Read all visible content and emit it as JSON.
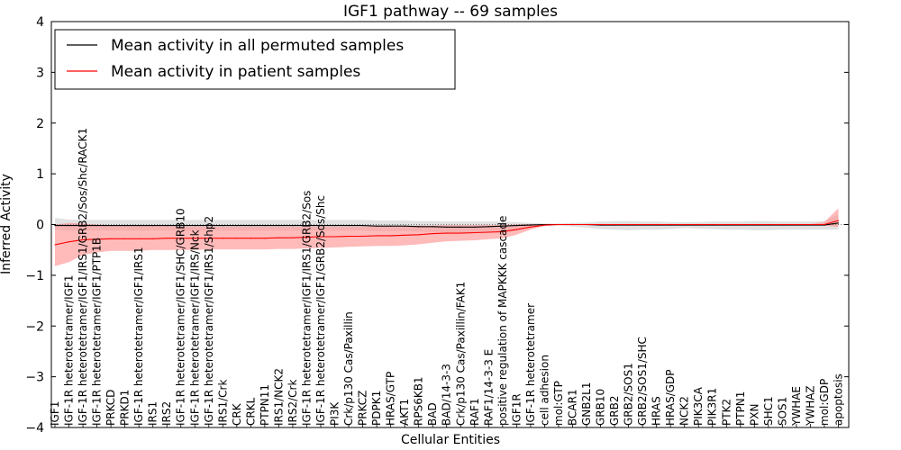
{
  "chart_data": {
    "type": "line",
    "title": "IGF1 pathway -- 69 samples",
    "xlabel": "Cellular Entities",
    "ylabel": "Inferred Activity",
    "ylim": [
      -4,
      4
    ],
    "yticks": [
      4,
      3,
      2,
      1,
      0,
      -1,
      -2,
      -3,
      -4
    ],
    "ytick_labels": [
      "4",
      "3",
      "2",
      "1",
      "0",
      "−1",
      "−2",
      "−3",
      "−4"
    ],
    "legend_position": "top-left",
    "categories": [
      "IGF1",
      "IGF-1R heterotetramer/IGF1",
      "IGF-1R heterotetramer/IGF1/IRS1/GRB2/Sos/Shc/RACK1",
      "IGF-1R heterotetramer/IGF1/PTP1B",
      "PRKCD",
      "PRKD1",
      "IGF-1R heterotetramer/IGF1/IRS1",
      "IRS1",
      "IRS2",
      "IGF-1R heterotetramer/IGF1/SHC/GRB10",
      "IGF-1R heterotetramer/IGF1/IRS/Nck",
      "IGF-1R heterotetramer/IGF1/IRS1/Shp2",
      "IRS1/Crk",
      "CRK",
      "CRKL",
      "PTPN11",
      "IRS1/NCK2",
      "IRS2/Crk",
      "IGF-1R heterotetramer/IGF1/IRS1/GRB2/Sos",
      "IGF-1R heterotetramer/IGF1/GRB2/Sos/Shc",
      "PI3K",
      "Crk/p130 Cas/Paxillin",
      "PRKCZ",
      "PDPK1",
      "HRAS/GTP",
      "AKT1",
      "RPS6KB1",
      "BAD",
      "BAD/14-3-3",
      "Crk/p130 Cas/Paxillin/FAK1",
      "RAF1",
      "RAF1/14-3-3 E",
      "positive regulation of MAPKKK cascade",
      "IGF1R",
      "IGF-1R heterotetramer",
      "cell adhesion",
      "mol:GTP",
      "BCAR1",
      "GNB2L1",
      "GRB10",
      "GRB2",
      "GRB2/SOS1",
      "GRB2/SOS1/SHC",
      "HRAS",
      "HRAS/GDP",
      "NCK2",
      "PIK3CA",
      "PIK3R1",
      "PTK2",
      "PTPN1",
      "PXN",
      "SHC1",
      "SOS1",
      "YWHAE",
      "YWHAZ",
      "mol:GDP",
      "apoptosis"
    ],
    "series": [
      {
        "name": "Mean activity in all permuted samples",
        "color": "#000000",
        "band_color": "#c8c8c8",
        "values": [
          -0.02,
          -0.02,
          -0.02,
          -0.02,
          -0.02,
          -0.02,
          -0.02,
          -0.02,
          -0.02,
          -0.02,
          -0.02,
          -0.02,
          -0.02,
          -0.02,
          -0.02,
          -0.02,
          -0.02,
          -0.02,
          -0.02,
          -0.02,
          -0.02,
          -0.02,
          -0.02,
          -0.03,
          -0.03,
          -0.03,
          -0.04,
          -0.04,
          -0.05,
          -0.05,
          -0.05,
          -0.04,
          -0.03,
          -0.02,
          -0.01,
          0,
          0,
          0,
          0,
          -0.01,
          -0.01,
          -0.01,
          -0.01,
          -0.01,
          -0.01,
          -0.01,
          -0.01,
          -0.01,
          -0.01,
          -0.01,
          -0.01,
          -0.01,
          -0.01,
          -0.01,
          -0.01,
          -0.01,
          0.03
        ],
        "lower": [
          -0.1,
          -0.12,
          -0.12,
          -0.12,
          -0.12,
          -0.12,
          -0.12,
          -0.12,
          -0.12,
          -0.12,
          -0.12,
          -0.12,
          -0.12,
          -0.12,
          -0.12,
          -0.12,
          -0.12,
          -0.12,
          -0.12,
          -0.12,
          -0.12,
          -0.12,
          -0.12,
          -0.13,
          -0.13,
          -0.13,
          -0.14,
          -0.15,
          -0.16,
          -0.17,
          -0.17,
          -0.16,
          -0.14,
          -0.1,
          -0.06,
          -0.02,
          -0.02,
          -0.04,
          -0.06,
          -0.09,
          -0.1,
          -0.11,
          -0.1,
          -0.1,
          -0.09,
          -0.07,
          -0.08,
          -0.09,
          -0.1,
          -0.1,
          -0.11,
          -0.11,
          -0.1,
          -0.1,
          -0.1,
          -0.1,
          -0.1
        ],
        "upper": [
          0.13,
          0.1,
          0.09,
          0.09,
          0.09,
          0.09,
          0.09,
          0.09,
          0.09,
          0.09,
          0.09,
          0.09,
          0.09,
          0.09,
          0.09,
          0.09,
          0.09,
          0.09,
          0.09,
          0.09,
          0.09,
          0.09,
          0.09,
          0.08,
          0.08,
          0.08,
          0.07,
          0.07,
          0.06,
          0.06,
          0.06,
          0.06,
          0.06,
          0.05,
          0.03,
          0.02,
          0.02,
          0.03,
          0.04,
          0.06,
          0.07,
          0.07,
          0.06,
          0.06,
          0.05,
          0.05,
          0.05,
          0.06,
          0.06,
          0.06,
          0.07,
          0.07,
          0.06,
          0.06,
          0.06,
          0.07,
          0.2
        ]
      },
      {
        "name": "Mean activity in patient samples",
        "color": "#ff0000",
        "band_color": "#ff9090",
        "values": [
          -0.4,
          -0.34,
          -0.3,
          -0.29,
          -0.28,
          -0.28,
          -0.28,
          -0.28,
          -0.27,
          -0.27,
          -0.27,
          -0.27,
          -0.27,
          -0.27,
          -0.27,
          -0.27,
          -0.26,
          -0.26,
          -0.25,
          -0.24,
          -0.24,
          -0.23,
          -0.23,
          -0.22,
          -0.22,
          -0.21,
          -0.2,
          -0.18,
          -0.17,
          -0.17,
          -0.16,
          -0.15,
          -0.14,
          -0.1,
          -0.05,
          -0.01,
          0,
          0,
          0,
          0,
          0,
          0,
          0,
          0,
          0,
          0,
          0,
          0,
          0,
          0,
          0,
          0,
          0,
          0,
          0,
          0,
          0.08
        ],
        "lower": [
          -0.82,
          -0.74,
          -0.6,
          -0.55,
          -0.52,
          -0.52,
          -0.52,
          -0.5,
          -0.5,
          -0.5,
          -0.5,
          -0.49,
          -0.49,
          -0.49,
          -0.49,
          -0.49,
          -0.48,
          -0.48,
          -0.47,
          -0.46,
          -0.45,
          -0.44,
          -0.43,
          -0.42,
          -0.42,
          -0.41,
          -0.39,
          -0.36,
          -0.33,
          -0.32,
          -0.31,
          -0.29,
          -0.27,
          -0.2,
          -0.1,
          -0.03,
          -0.01,
          -0.01,
          -0.01,
          -0.01,
          -0.01,
          -0.01,
          -0.01,
          -0.01,
          -0.01,
          -0.01,
          -0.01,
          -0.01,
          -0.01,
          -0.01,
          -0.01,
          -0.01,
          -0.01,
          -0.01,
          -0.01,
          -0.02,
          -0.05
        ],
        "upper": [
          0,
          0.03,
          0.02,
          0,
          -0.01,
          -0.01,
          -0.02,
          -0.03,
          -0.03,
          -0.04,
          -0.04,
          -0.04,
          -0.04,
          -0.04,
          -0.04,
          -0.04,
          -0.04,
          -0.04,
          -0.04,
          -0.04,
          -0.04,
          -0.04,
          -0.04,
          -0.03,
          -0.03,
          -0.03,
          -0.02,
          -0.02,
          -0.01,
          -0.01,
          -0.01,
          -0.01,
          -0.01,
          0,
          0.01,
          0.01,
          0.01,
          0.01,
          0.01,
          0.01,
          0.01,
          0.01,
          0.01,
          0.01,
          0.01,
          0.01,
          0.01,
          0.01,
          0.01,
          0.01,
          0.01,
          0.01,
          0.01,
          0.01,
          0.01,
          0.05,
          0.32
        ]
      }
    ]
  }
}
